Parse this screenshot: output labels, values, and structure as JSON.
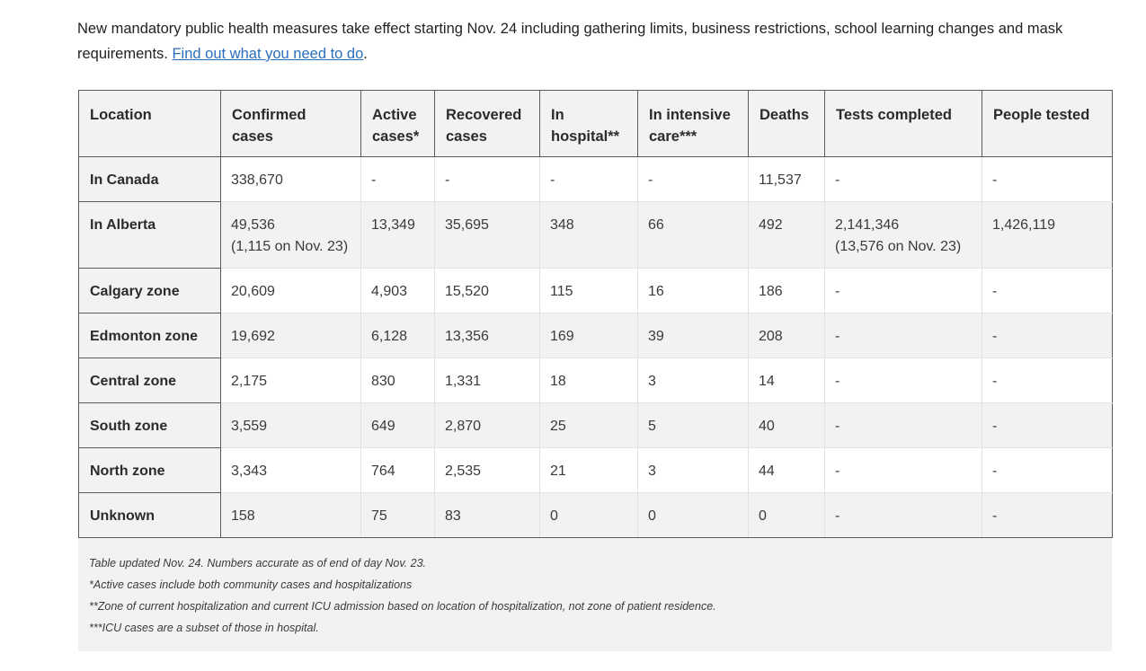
{
  "intro": {
    "text": "New mandatory public health measures take effect starting Nov. 24 including gathering limits, business restrictions, school learning changes and mask requirements. ",
    "link": "Find out what you need to do",
    "trailing": "."
  },
  "table": {
    "headers": [
      "Location",
      "Confirmed cases",
      "Active cases*",
      "Recovered cases",
      "In hospital**",
      "In intensive care***",
      "Deaths",
      "Tests completed",
      "People tested"
    ],
    "rows": [
      {
        "location": "In Canada",
        "confirmed": "338,670",
        "confirmed_sub": "",
        "active": "-",
        "recovered": "-",
        "hospital": "-",
        "icu": "-",
        "deaths": "11,537",
        "tests": "-",
        "tests_sub": "",
        "people": "-"
      },
      {
        "location": "In Alberta",
        "confirmed": "49,536",
        "confirmed_sub": "(1,115 on Nov. 23)",
        "active": "13,349",
        "recovered": "35,695",
        "hospital": "348",
        "icu": "66",
        "deaths": "492",
        "tests": "2,141,346",
        "tests_sub": "(13,576 on Nov. 23)",
        "people": "1,426,119"
      },
      {
        "location": "Calgary zone",
        "confirmed": "20,609",
        "confirmed_sub": "",
        "active": "4,903",
        "recovered": "15,520",
        "hospital": "115",
        "icu": "16",
        "deaths": "186",
        "tests": "-",
        "tests_sub": "",
        "people": "-"
      },
      {
        "location": "Edmonton zone",
        "confirmed": "19,692",
        "confirmed_sub": "",
        "active": "6,128",
        "recovered": "13,356",
        "hospital": "169",
        "icu": "39",
        "deaths": "208",
        "tests": "-",
        "tests_sub": "",
        "people": "-"
      },
      {
        "location": "Central zone",
        "confirmed": "2,175",
        "confirmed_sub": "",
        "active": "830",
        "recovered": "1,331",
        "hospital": "18",
        "icu": "3",
        "deaths": "14",
        "tests": "-",
        "tests_sub": "",
        "people": "-"
      },
      {
        "location": "South zone",
        "confirmed": "3,559",
        "confirmed_sub": "",
        "active": "649",
        "recovered": "2,870",
        "hospital": "25",
        "icu": "5",
        "deaths": "40",
        "tests": "-",
        "tests_sub": "",
        "people": "-"
      },
      {
        "location": "North zone",
        "confirmed": "3,343",
        "confirmed_sub": "",
        "active": "764",
        "recovered": "2,535",
        "hospital": "21",
        "icu": "3",
        "deaths": "44",
        "tests": "-",
        "tests_sub": "",
        "people": "-"
      },
      {
        "location": "Unknown",
        "confirmed": "158",
        "confirmed_sub": "",
        "active": "75",
        "recovered": "83",
        "hospital": "0",
        "icu": "0",
        "deaths": "0",
        "tests": "-",
        "tests_sub": "",
        "people": "-"
      }
    ]
  },
  "notes": [
    "Table updated Nov. 24. Numbers accurate as of end of day Nov. 23.",
    "*Active cases include both community cases and hospitalizations",
    "**Zone of current hospitalization and current ICU admission based on location of hospitalization, not zone of patient residence.",
    "***ICU cases are a subset of those in hospital."
  ]
}
